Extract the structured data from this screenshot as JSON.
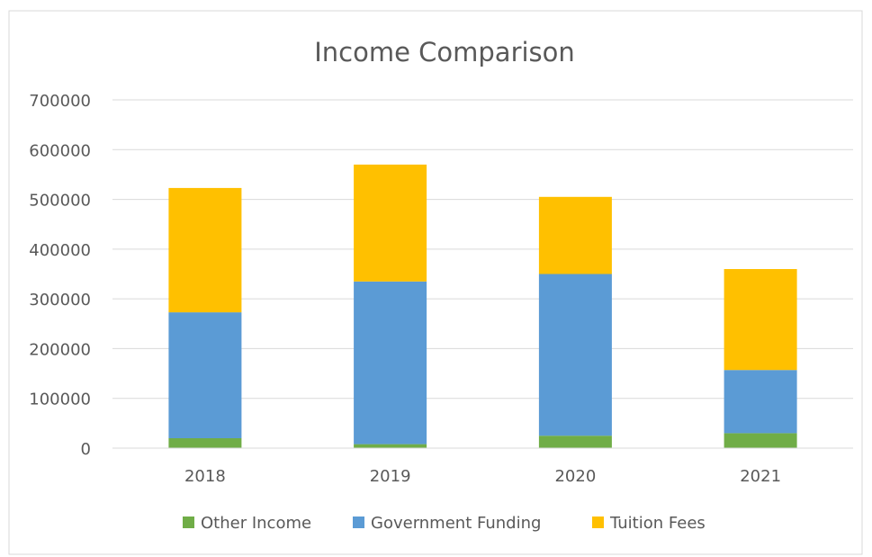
{
  "chart_data": {
    "type": "bar",
    "stacked": true,
    "title": "Income Comparison",
    "categories": [
      "2018",
      "2019",
      "2020",
      "2021"
    ],
    "series": [
      {
        "name": "Other Income",
        "values": [
          20000,
          8000,
          25000,
          30000
        ],
        "color": "#70ad47"
      },
      {
        "name": "Government Funding",
        "values": [
          253000,
          327000,
          325000,
          127000
        ],
        "color": "#5b9bd5"
      },
      {
        "name": "Tuition Fees",
        "values": [
          250000,
          235000,
          155000,
          203000
        ],
        "color": "#ffc000"
      }
    ],
    "ylim": [
      0,
      700000
    ],
    "yticks": [
      "0",
      "100000",
      "200000",
      "300000",
      "400000",
      "500000",
      "600000",
      "700000"
    ],
    "grid": true,
    "legend_position": "bottom"
  }
}
